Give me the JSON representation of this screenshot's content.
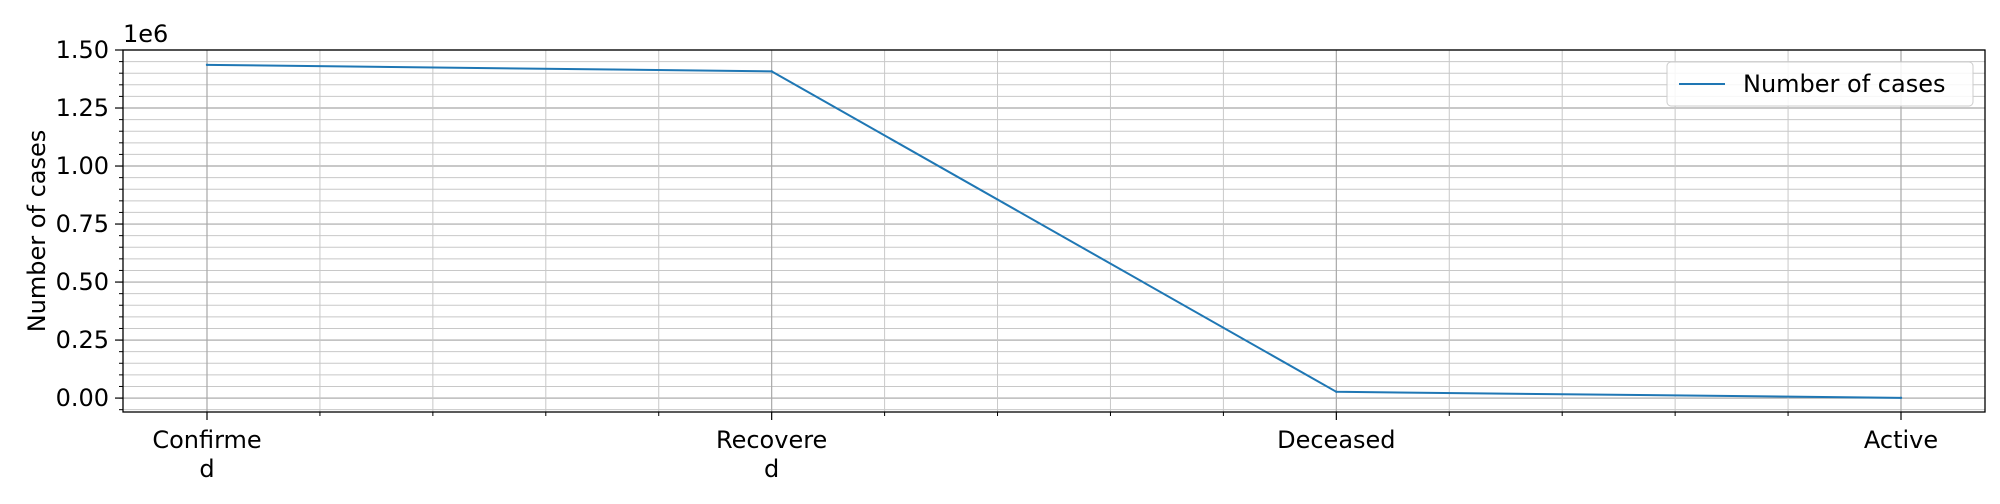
{
  "chart_data": {
    "type": "line",
    "categories": [
      "Confirmed",
      "Recovered",
      "Deceased",
      "Active"
    ],
    "category_tick_labels": [
      [
        "Confirme",
        "d"
      ],
      [
        "Recovere",
        "d"
      ],
      [
        "Deceased"
      ],
      [
        "Active"
      ]
    ],
    "series": [
      {
        "name": "Number of cases",
        "values": [
          1436000,
          1408000,
          27000,
          1000
        ],
        "color": "#1f77b4"
      }
    ],
    "xlabel": "",
    "ylabel": "Number of cases",
    "ylim": [
      -60000,
      1500000
    ],
    "yticks": [
      0,
      250000,
      500000,
      750000,
      1000000,
      1250000,
      1500000
    ],
    "ytick_labels": [
      "0.00",
      "0.25",
      "0.50",
      "0.75",
      "1.00",
      "1.25",
      "1.50"
    ],
    "y_minor_step": 50000,
    "x_minor_divisions": 5,
    "offset_text": "1e6",
    "grid": true,
    "legend_position": "top-right"
  }
}
